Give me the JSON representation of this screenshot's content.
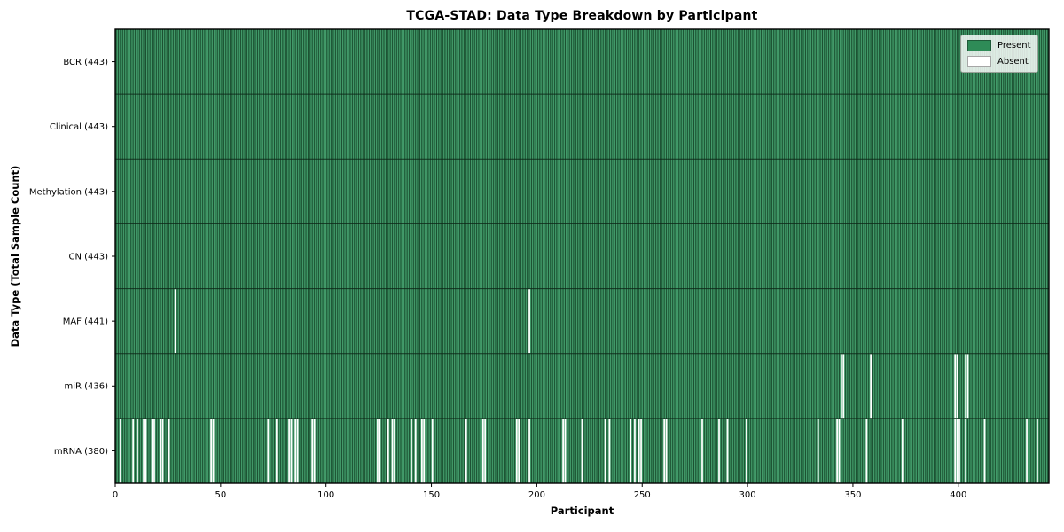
{
  "window": {
    "title": "TCGA-STAD: Data Type Breakdown by Participant"
  },
  "legend": {
    "items": [
      {
        "label": "Present",
        "color": "#2e8b57"
      },
      {
        "label": "Absent",
        "color": "#ffffff"
      }
    ]
  },
  "chart_data": {
    "type": "heatmap",
    "title": "TCGA-STAD: Data Type Breakdown by Participant",
    "xlabel": "Participant",
    "ylabel": "Data Type (Total Sample Count)",
    "n_participants": 443,
    "xlim": [
      0,
      443
    ],
    "xticks": [
      0,
      50,
      100,
      150,
      200,
      250,
      300,
      350,
      400
    ],
    "grid": false,
    "legend_position": "upper right",
    "colors": {
      "present": "#2e8b57",
      "present_light": "#4da173",
      "bar_edge": "#173f27",
      "absent": "#ffffff",
      "row_boundary": "#0c2315",
      "plot_border": "#000000",
      "text": "#000000"
    },
    "rows": [
      {
        "label": "BCR (443)",
        "data_type": "BCR",
        "present_count": 443,
        "absent_participants": []
      },
      {
        "label": "Clinical (443)",
        "data_type": "Clinical",
        "present_count": 443,
        "absent_participants": []
      },
      {
        "label": "Methylation (443)",
        "data_type": "Methylation",
        "present_count": 443,
        "absent_participants": []
      },
      {
        "label": "CN (443)",
        "data_type": "CN",
        "present_count": 443,
        "absent_participants": []
      },
      {
        "label": "MAF (441)",
        "data_type": "MAF",
        "present_count": 441,
        "absent_participants": [
          28,
          196
        ]
      },
      {
        "label": "miR (436)",
        "data_type": "miR",
        "present_count": 436,
        "absent_participants": [
          344,
          345,
          358,
          398,
          399,
          403,
          404
        ]
      },
      {
        "label": "mRNA (380)",
        "data_type": "mRNA",
        "present_count": 380,
        "absent_participants": [
          2,
          8,
          10,
          13,
          14,
          17,
          18,
          21,
          22,
          25,
          45,
          46,
          72,
          76,
          82,
          83,
          85,
          86,
          93,
          94,
          124,
          125,
          129,
          131,
          132,
          140,
          142,
          145,
          146,
          150,
          166,
          174,
          175,
          190,
          191,
          196,
          212,
          213,
          221,
          232,
          234,
          244,
          246,
          248,
          249,
          260,
          261,
          278,
          286,
          290,
          299,
          333,
          342,
          343,
          356,
          373,
          398,
          399,
          400,
          403,
          412,
          432,
          437
        ]
      }
    ]
  }
}
